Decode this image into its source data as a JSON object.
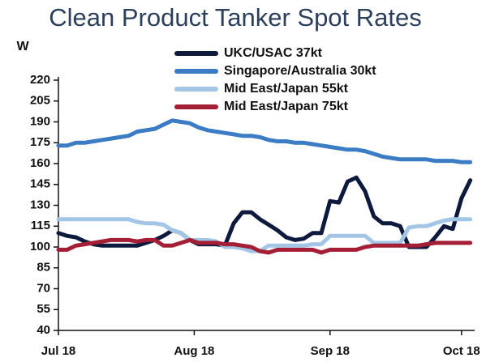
{
  "chart_data": {
    "type": "line",
    "title": "Clean Product Tanker Spot Rates",
    "y_label": "W",
    "x": [
      0,
      2,
      4,
      6,
      8,
      10,
      12,
      14,
      16,
      18,
      20,
      22,
      24,
      26,
      28,
      30,
      32,
      34,
      36,
      38,
      40,
      42,
      44,
      46,
      48,
      50,
      52,
      54,
      56,
      58,
      60,
      62,
      64,
      66,
      68,
      70,
      72,
      74,
      76,
      78,
      80,
      82,
      84,
      86,
      88,
      90,
      92,
      94
    ],
    "xlim": [
      0,
      95
    ],
    "xticks": [
      {
        "value": 0,
        "label": "Jul 18"
      },
      {
        "value": 31,
        "label": "Aug 18"
      },
      {
        "value": 62,
        "label": "Sep 18"
      },
      {
        "value": 92,
        "label": "Oct 18"
      }
    ],
    "ylim": [
      40,
      220
    ],
    "yticks": [
      40,
      55,
      70,
      85,
      100,
      115,
      130,
      145,
      160,
      175,
      190,
      205,
      220
    ],
    "grid": false,
    "series": [
      {
        "name": "UKC/USAC 37kt",
        "color": "#0e1a3d",
        "values": [
          110,
          108,
          107,
          104,
          102,
          101,
          101,
          101,
          101,
          101,
          103,
          105,
          108,
          112,
          110,
          105,
          102,
          102,
          102,
          101,
          117,
          125,
          125,
          120,
          116,
          112,
          107,
          105,
          106,
          110,
          110,
          133,
          132,
          147,
          150,
          140,
          122,
          117,
          117,
          115,
          100,
          100,
          100,
          107,
          115,
          113,
          135,
          148
        ]
      },
      {
        "name": "Singapore/Australia 30kt",
        "color": "#3b7cc4",
        "values": [
          173,
          173,
          175,
          175,
          176,
          177,
          178,
          179,
          180,
          183,
          184,
          185,
          188,
          191,
          190,
          189,
          186,
          184,
          183,
          182,
          181,
          180,
          180,
          179,
          177,
          176,
          176,
          175,
          175,
          174,
          173,
          172,
          171,
          170,
          170,
          169,
          167,
          165,
          164,
          163,
          163,
          163,
          163,
          162,
          162,
          162,
          161,
          161
        ]
      },
      {
        "name": "Mid East/Japan 55kt",
        "color": "#a3c6e6",
        "values": [
          120,
          120,
          120,
          120,
          120,
          120,
          120,
          120,
          120,
          118,
          117,
          117,
          116,
          112,
          110,
          105,
          105,
          105,
          104,
          100,
          100,
          99,
          97,
          97,
          101,
          101,
          101,
          101,
          101,
          102,
          102,
          108,
          108,
          108,
          108,
          108,
          103,
          103,
          103,
          103,
          114,
          115,
          115,
          117,
          119,
          120,
          120,
          120
        ]
      },
      {
        "name": "Mid East/Japan 75kt",
        "color": "#a41f35",
        "values": [
          98,
          98,
          101,
          102,
          103,
          104,
          105,
          105,
          105,
          104,
          105,
          105,
          101,
          101,
          103,
          105,
          103,
          103,
          103,
          102,
          102,
          101,
          100,
          97,
          96,
          98,
          98,
          98,
          98,
          98,
          96,
          98,
          98,
          98,
          98,
          100,
          101,
          101,
          101,
          101,
          101,
          101,
          102,
          103,
          103,
          103,
          103,
          103
        ]
      }
    ]
  }
}
